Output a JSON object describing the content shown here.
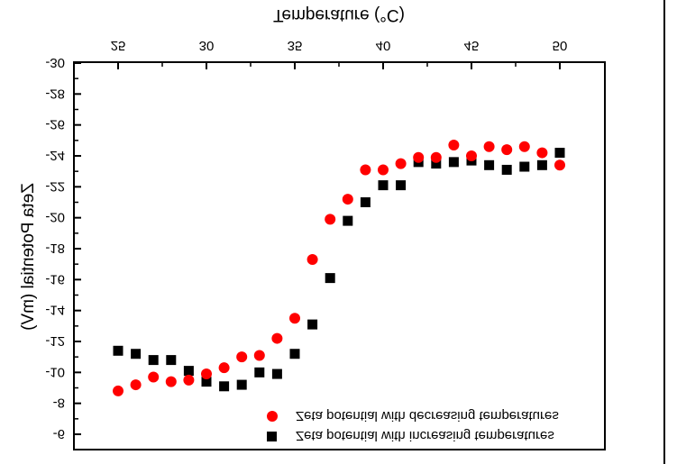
{
  "chart_data": {
    "type": "scatter",
    "xlabel": "Temperature (°C)",
    "ylabel": "Zeta Potential (mV)",
    "xlim": [
      23,
      53
    ],
    "ylim": [
      -31,
      -3.5
    ],
    "xticks": [
      25,
      30,
      35,
      40,
      45,
      50
    ],
    "yticks": [
      -30,
      -28,
      -26,
      -24,
      -22,
      -20,
      -18,
      -16,
      -14,
      -12,
      -10,
      -8,
      -6
    ],
    "grid": false,
    "legend_placement": "top-right",
    "orientation_note_flipped_vertically": true,
    "series": [
      {
        "name": "Zeta potential with increasing temperatures",
        "marker": "square",
        "color": "#000000",
        "x": [
          25,
          26,
          27,
          28,
          29,
          30,
          31,
          32,
          33,
          34,
          35,
          36,
          37,
          38,
          39,
          40,
          41,
          42,
          43,
          44,
          45,
          46,
          47,
          48,
          49,
          50
        ],
        "y": [
          -11.4,
          -11.2,
          -10.8,
          -10.8,
          -10.1,
          -9.4,
          -9.1,
          -9.2,
          -10.0,
          -9.9,
          -11.2,
          -13.1,
          -16.1,
          -19.8,
          -21.0,
          -22.1,
          -22.1,
          -23.6,
          -23.5,
          -23.6,
          -23.7,
          -23.4,
          -23.1,
          -23.3,
          -23.4,
          -24.2
        ]
      },
      {
        "name": "Zeta potential with decreasing temperatures",
        "marker": "circle",
        "color": "#ff0000",
        "x": [
          25,
          26,
          27,
          28,
          29,
          30,
          31,
          32,
          33,
          34,
          35,
          36,
          37,
          38,
          39,
          40,
          41,
          42,
          43,
          44,
          45,
          46,
          47,
          48,
          49,
          50
        ],
        "y": [
          -8.8,
          -9.2,
          -9.7,
          -9.4,
          -9.5,
          -9.9,
          -10.3,
          -11.0,
          -11.1,
          -12.2,
          -13.5,
          -17.3,
          -19.9,
          -21.2,
          -23.1,
          -23.1,
          -23.5,
          -23.9,
          -23.9,
          -24.7,
          -24.0,
          -24.6,
          -24.4,
          -24.6,
          -24.2,
          -23.4
        ]
      }
    ]
  }
}
